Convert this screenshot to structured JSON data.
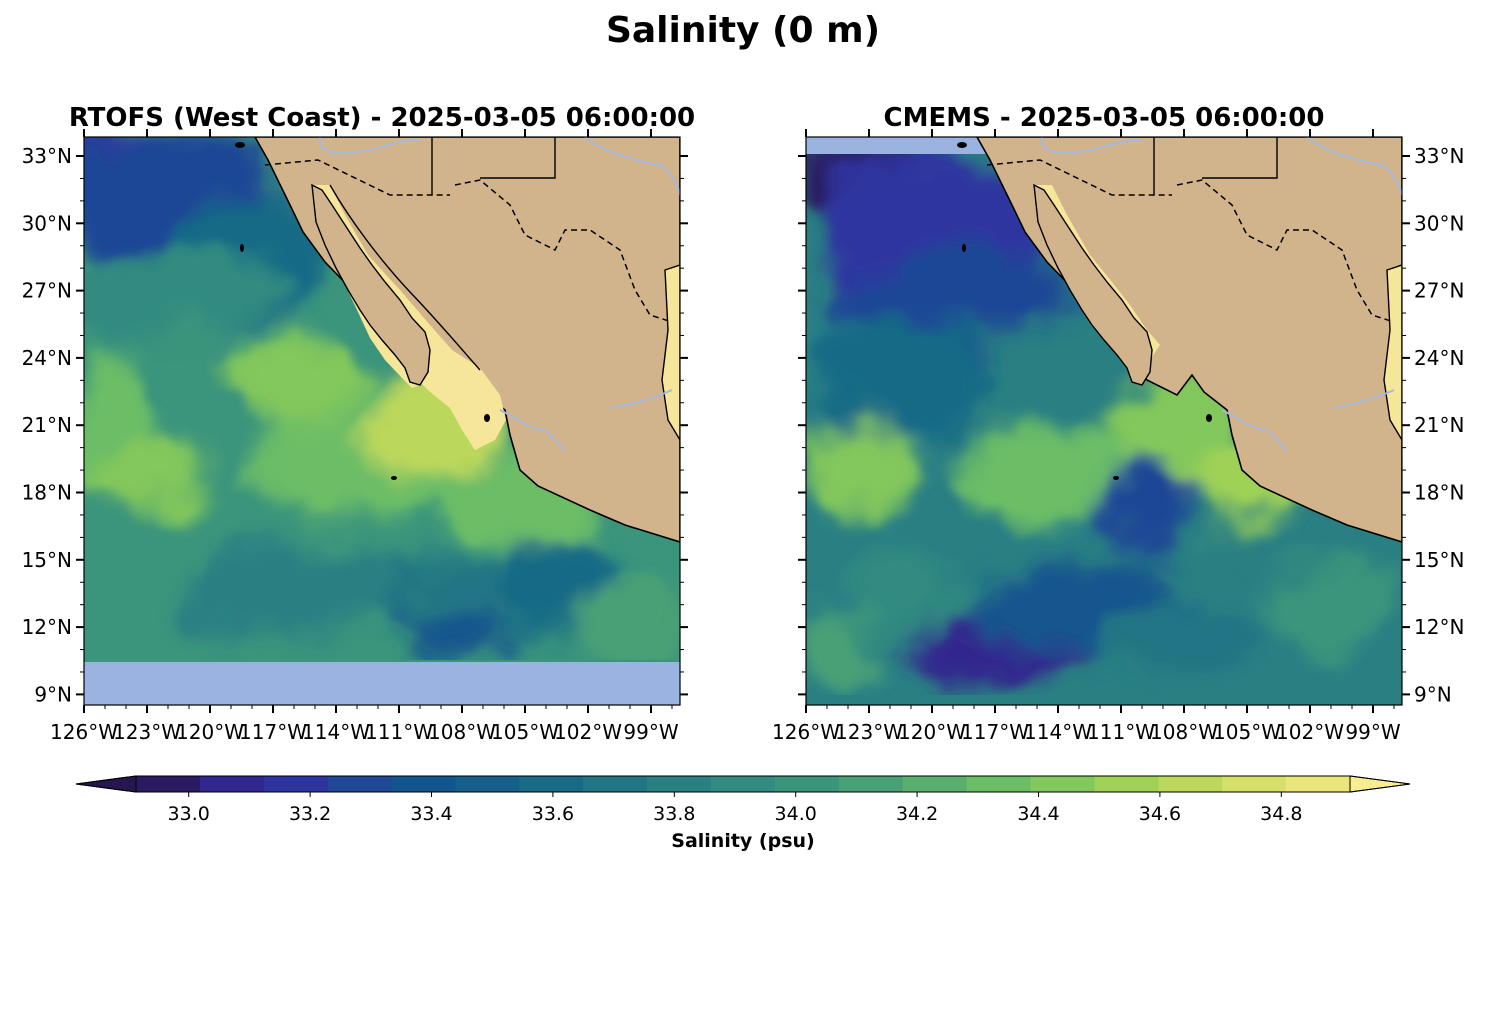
{
  "figure": {
    "title": "Salinity (0 m)"
  },
  "panels": [
    {
      "id": "rtofs",
      "title": "RTOFS (West Coast) - 2025-03-05 06:00:00",
      "lat_axis_side": "left",
      "no_data_band": "south of ~10°N"
    },
    {
      "id": "cmems",
      "title": "CMEMS - 2025-03-05 06:00:00",
      "lat_axis_side": "right",
      "no_data_band": "northwest corner strip ~33°N"
    }
  ],
  "map_extent": {
    "lon": [
      -126,
      -97
    ],
    "lat": [
      8,
      33.8
    ]
  },
  "lon_ticks": [
    "126°W",
    "123°W",
    "120°W",
    "117°W",
    "114°W",
    "111°W",
    "108°W",
    "105°W",
    "102°W",
    "99°W"
  ],
  "lat_ticks": [
    "33°N",
    "30°N",
    "27°N",
    "24°N",
    "21°N",
    "18°N",
    "15°N",
    "12°N",
    "9°N"
  ],
  "colors": {
    "land": "#d2b48c",
    "no_data": "#9ab3e0",
    "rivers": "#a8b8d8",
    "coast": "#000000"
  },
  "colorbar": {
    "label": "Salinity (psu)",
    "ticks": [
      "33.0",
      "33.2",
      "33.4",
      "33.6",
      "33.8",
      "34.0",
      "34.2",
      "34.4",
      "34.6",
      "34.8"
    ],
    "range": [
      32.9,
      34.9
    ],
    "extend": "both",
    "colors": [
      "#2b1a62",
      "#31268e",
      "#2d34a0",
      "#1f4796",
      "#13558e",
      "#155f8a",
      "#196a86",
      "#227584",
      "#2a7f83",
      "#328a80",
      "#3b947c",
      "#48a076",
      "#5aaf6e",
      "#6cbd66",
      "#83c85c",
      "#9fd156",
      "#bcd85c",
      "#d6df6a",
      "#eae67c"
    ],
    "under_color": "#26184f",
    "over_color": "#f8ee90"
  }
}
